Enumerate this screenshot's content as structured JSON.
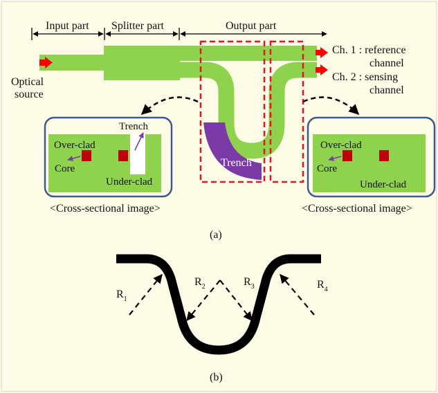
{
  "colors": {
    "background": "#FEFBE6",
    "waveguide": "#8FD24E",
    "trench": "#7B3BA6",
    "arrow_red": "#FF0000",
    "dashed_box": "#E8141E",
    "panel_border": "#3C5A8C",
    "core": "#C0000A",
    "bend": "#000000"
  },
  "sections": {
    "input": "Input part",
    "splitter": "Splitter part",
    "output": "Output part"
  },
  "optical_source": [
    "Optical",
    "source"
  ],
  "channels": {
    "ch1": [
      "Ch. 1 : reference",
      "channel"
    ],
    "ch2": [
      "Ch. 2 : sensing",
      "channel"
    ]
  },
  "trench_label": "Trench",
  "left_panel": {
    "trench": "Trench",
    "over_clad": "Over-clad",
    "core": "Core",
    "under_clad": "Under-clad",
    "caption": "<Cross-sectional image>"
  },
  "right_panel": {
    "over_clad": "Over-clad",
    "core": "Core",
    "under_clad": "Under-clad",
    "caption": "<Cross-sectional image>"
  },
  "caption_a": "(a)",
  "caption_b": "(b)",
  "radii": [
    {
      "main": "R",
      "sub": "1"
    },
    {
      "main": "R",
      "sub": "2"
    },
    {
      "main": "R",
      "sub": "3"
    },
    {
      "main": "R",
      "sub": "4"
    }
  ]
}
